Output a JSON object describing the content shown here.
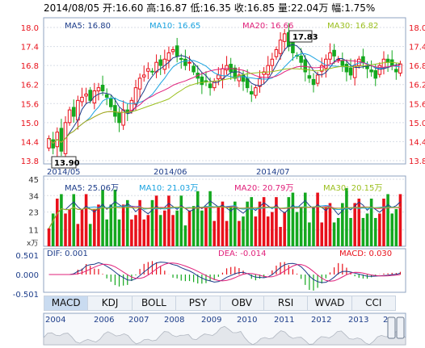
{
  "header": {
    "date": "2014/08/05",
    "open": "开:16.60",
    "high": "高:16.87",
    "low": "低:16.35",
    "close": "收:16.85",
    "volume": "量:22.04万",
    "change": "幅:1.75%"
  },
  "colors": {
    "up": "#e8101a",
    "down": "#14a81f",
    "ma5": "#1d3d8a",
    "ma10": "#1aa3e0",
    "ma20": "#e0207a",
    "ma30": "#9bbf1d",
    "grid": "#d8dde6",
    "frame": "#8fa3c0"
  },
  "chart_data": [
    {
      "type": "candlestick",
      "x_labels": [
        "2014/05",
        "2014/06",
        "2014/07"
      ],
      "ylim": [
        13.8,
        18.0
      ],
      "y_ticks": [
        "18.0",
        "17.4",
        "16.8",
        "16.2",
        "15.6",
        "15.0",
        "14.4",
        "13.8"
      ],
      "legend": {
        "ma5": "MA5: 16.80",
        "ma10": "MA10: 16.65",
        "ma20": "MA20: 16.66",
        "ma30": "MA30: 16.82"
      },
      "annotations": {
        "max": "17.83",
        "min": "13.90"
      },
      "closes": [
        14.5,
        14.2,
        14.7,
        14.1,
        15.0,
        15.4,
        15.2,
        15.7,
        15.8,
        15.9,
        15.7,
        16.0,
        16.1,
        16.0,
        15.8,
        15.5,
        15.2,
        15.0,
        15.4,
        15.3,
        15.7,
        16.1,
        16.4,
        16.5,
        16.7,
        16.6,
        16.9,
        16.8,
        17.0,
        17.2,
        17.3,
        17.1,
        17.0,
        16.8,
        16.9,
        16.6,
        16.4,
        16.2,
        16.3,
        16.1,
        16.3,
        16.5,
        16.7,
        16.8,
        16.6,
        16.4,
        16.5,
        16.3,
        16.1,
        15.9,
        16.1,
        16.4,
        16.6,
        16.8,
        17.0,
        17.3,
        17.6,
        17.8,
        17.4,
        17.2,
        17.1,
        16.9,
        16.6,
        16.4,
        16.2,
        16.5,
        16.8,
        17.0,
        17.2,
        17.1,
        17.0,
        16.8,
        16.6,
        16.5,
        16.8,
        17.0,
        16.9,
        16.7,
        16.6,
        16.4,
        16.8,
        17.0,
        16.9,
        16.8,
        16.6,
        16.85
      ]
    },
    {
      "type": "volume_bar",
      "ylim": [
        0,
        45
      ],
      "y_ticks": [
        "45",
        "34",
        "23",
        "11"
      ],
      "legend": {
        "ma5": "MA5: 25.06万",
        "ma10": "MA10: 21.03万",
        "ma20": "MA20: 20.79万",
        "ma30": "MA30: 20.15万"
      },
      "unit": "x万"
    },
    {
      "type": "macd",
      "ylim": [
        -0.501,
        0.501
      ],
      "y_ticks": [
        "0.501",
        "0.000",
        "-0.501"
      ],
      "legend": {
        "dif": "DIF: 0.001",
        "dea": "DEA: -0.014",
        "macd": "MACD: 0.030"
      }
    }
  ],
  "tabs": [
    "MACD",
    "KDJ",
    "BOLL",
    "PSY",
    "OBV",
    "RSI",
    "WVAD",
    "CCI"
  ],
  "active_tab": "MACD",
  "navigator": {
    "years": [
      "2004",
      "2006",
      "2007",
      "2008",
      "2009",
      "2010",
      "2011",
      "2012",
      "2013",
      "2"
    ]
  }
}
